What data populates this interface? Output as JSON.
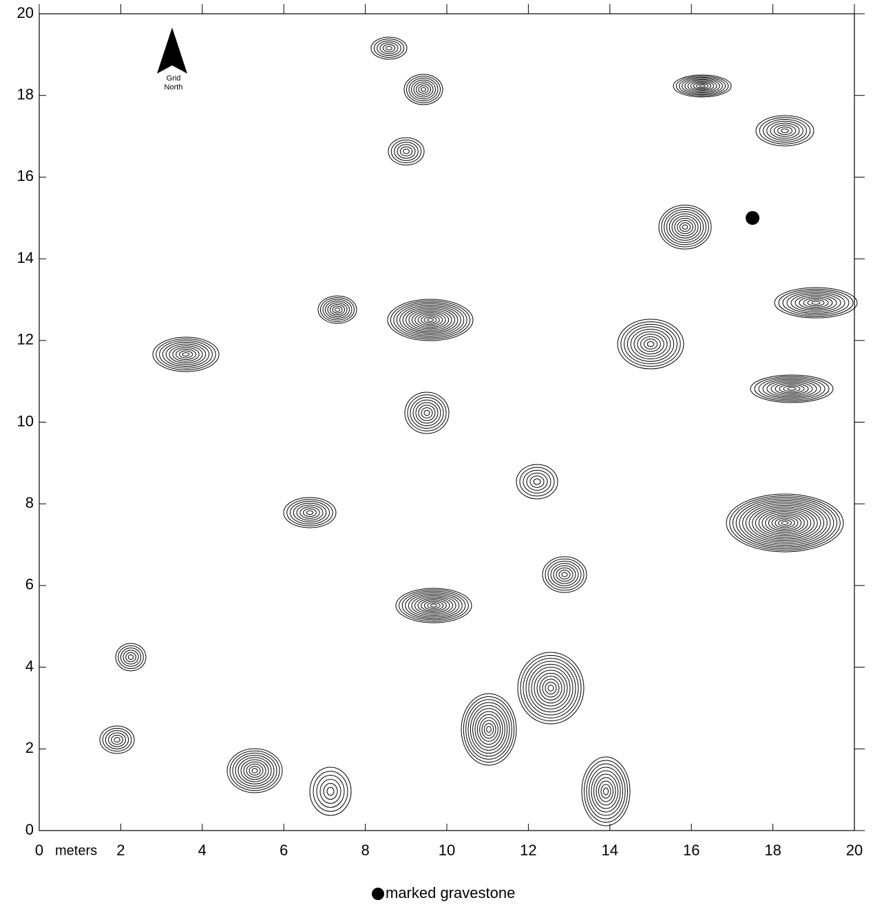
{
  "chart_data": {
    "type": "contour",
    "x_axis_label": "meters",
    "north_label": [
      "Grid",
      "North"
    ],
    "xlim": [
      0,
      20
    ],
    "ylim": [
      0,
      20
    ],
    "xticks": [
      0,
      2,
      4,
      6,
      8,
      10,
      12,
      14,
      16,
      18,
      20
    ],
    "yticks": [
      0,
      2,
      4,
      6,
      8,
      10,
      12,
      14,
      16,
      18,
      20
    ],
    "series": [
      {
        "name": "marked gravestone",
        "color": "#000000",
        "x": [
          17.5
        ],
        "values": [
          15
        ]
      }
    ]
  }
}
